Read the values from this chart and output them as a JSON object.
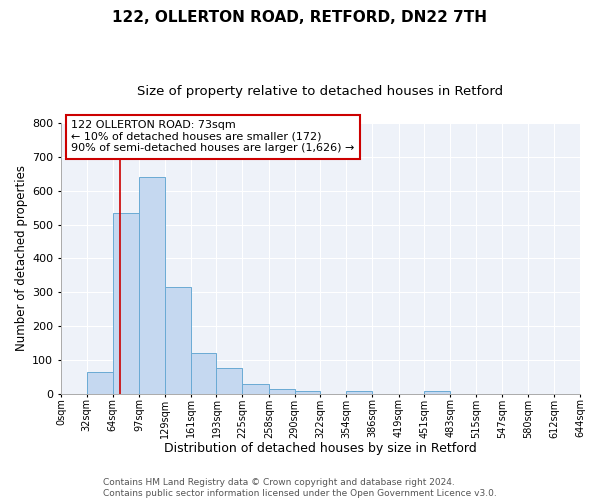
{
  "title": "122, OLLERTON ROAD, RETFORD, DN22 7TH",
  "subtitle": "Size of property relative to detached houses in Retford",
  "xlabel": "Distribution of detached houses by size in Retford",
  "ylabel": "Number of detached properties",
  "bar_left_edges": [
    0,
    32,
    64,
    97,
    129,
    161,
    193,
    225,
    258,
    290,
    322,
    354,
    386,
    419,
    451,
    483,
    515,
    547,
    580,
    612
  ],
  "bar_heights": [
    0,
    65,
    535,
    640,
    315,
    120,
    78,
    30,
    15,
    10,
    0,
    10,
    0,
    0,
    8,
    0,
    0,
    0,
    0,
    0
  ],
  "bar_widths": [
    32,
    32,
    33,
    32,
    32,
    32,
    32,
    33,
    32,
    32,
    32,
    32,
    33,
    32,
    32,
    32,
    32,
    33,
    32,
    32
  ],
  "xtick_labels": [
    "0sqm",
    "32sqm",
    "64sqm",
    "97sqm",
    "129sqm",
    "161sqm",
    "193sqm",
    "225sqm",
    "258sqm",
    "290sqm",
    "322sqm",
    "354sqm",
    "386sqm",
    "419sqm",
    "451sqm",
    "483sqm",
    "515sqm",
    "547sqm",
    "580sqm",
    "612sqm",
    "644sqm"
  ],
  "xtick_positions": [
    0,
    32,
    64,
    97,
    129,
    161,
    193,
    225,
    258,
    290,
    322,
    354,
    386,
    419,
    451,
    483,
    515,
    547,
    580,
    612,
    644
  ],
  "ylim": [
    0,
    800
  ],
  "yticks": [
    0,
    100,
    200,
    300,
    400,
    500,
    600,
    700,
    800
  ],
  "bar_color": "#c5d8f0",
  "bar_edge_color": "#6aaad4",
  "background_color": "#eef2f9",
  "grid_color": "#ffffff",
  "vline_x": 73,
  "vline_color": "#cc0000",
  "annotation_line1": "122 OLLERTON ROAD: 73sqm",
  "annotation_line2": "← 10% of detached houses are smaller (172)",
  "annotation_line3": "90% of semi-detached houses are larger (1,626) →",
  "footnote": "Contains HM Land Registry data © Crown copyright and database right 2024.\nContains public sector information licensed under the Open Government Licence v3.0.",
  "title_fontsize": 11,
  "subtitle_fontsize": 9.5,
  "xlabel_fontsize": 9,
  "ylabel_fontsize": 8.5,
  "annotation_fontsize": 8,
  "tick_fontsize": 7,
  "ytick_fontsize": 8,
  "footnote_fontsize": 6.5
}
